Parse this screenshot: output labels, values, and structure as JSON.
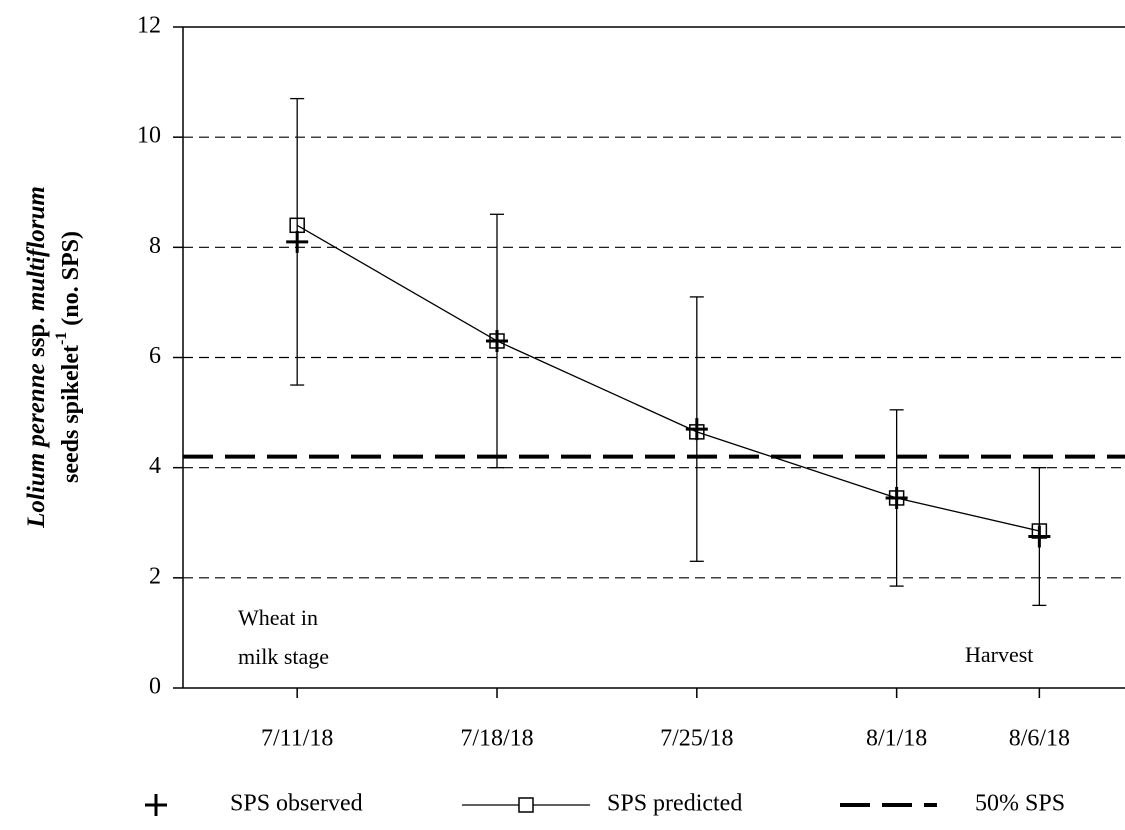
{
  "chart_data": {
    "type": "line",
    "ylabel": [
      "Lolium perenne",
      " ssp. ",
      "multiflorum"
    ],
    "ylabel2": [
      "seeds spikelet",
      "-1",
      " (no. SPS)"
    ],
    "x": [
      "7/11/18",
      "7/18/18",
      "7/25/18",
      "8/1/18",
      "8/6/18"
    ],
    "xlim": [
      "7/7/18",
      "8/9/18"
    ],
    "xticks": [
      "7/11/18",
      "7/18/18",
      "7/25/18",
      "8/1/18",
      "8/6/18"
    ],
    "ylim": [
      0,
      12
    ],
    "yticks": [
      0,
      2,
      4,
      6,
      8,
      10,
      12
    ],
    "grid": true,
    "series": [
      {
        "name": "SPS observed",
        "color": "#000000",
        "marker": "plus",
        "values": [
          8.1,
          6.3,
          4.7,
          3.45,
          2.75
        ],
        "errors": [
          2.6,
          2.3,
          2.4,
          1.6,
          1.25
        ]
      },
      {
        "name": "SPS predicted",
        "color": "#000000",
        "marker": "square",
        "values": [
          8.4,
          6.3,
          4.65,
          3.45,
          2.85
        ]
      }
    ],
    "reference_line": {
      "name": "50% SPS",
      "value": 4.2,
      "color": "#000000"
    },
    "annotations": [
      "Wheat in",
      "milk stage",
      "Harvest"
    ],
    "legend": "bottom"
  }
}
